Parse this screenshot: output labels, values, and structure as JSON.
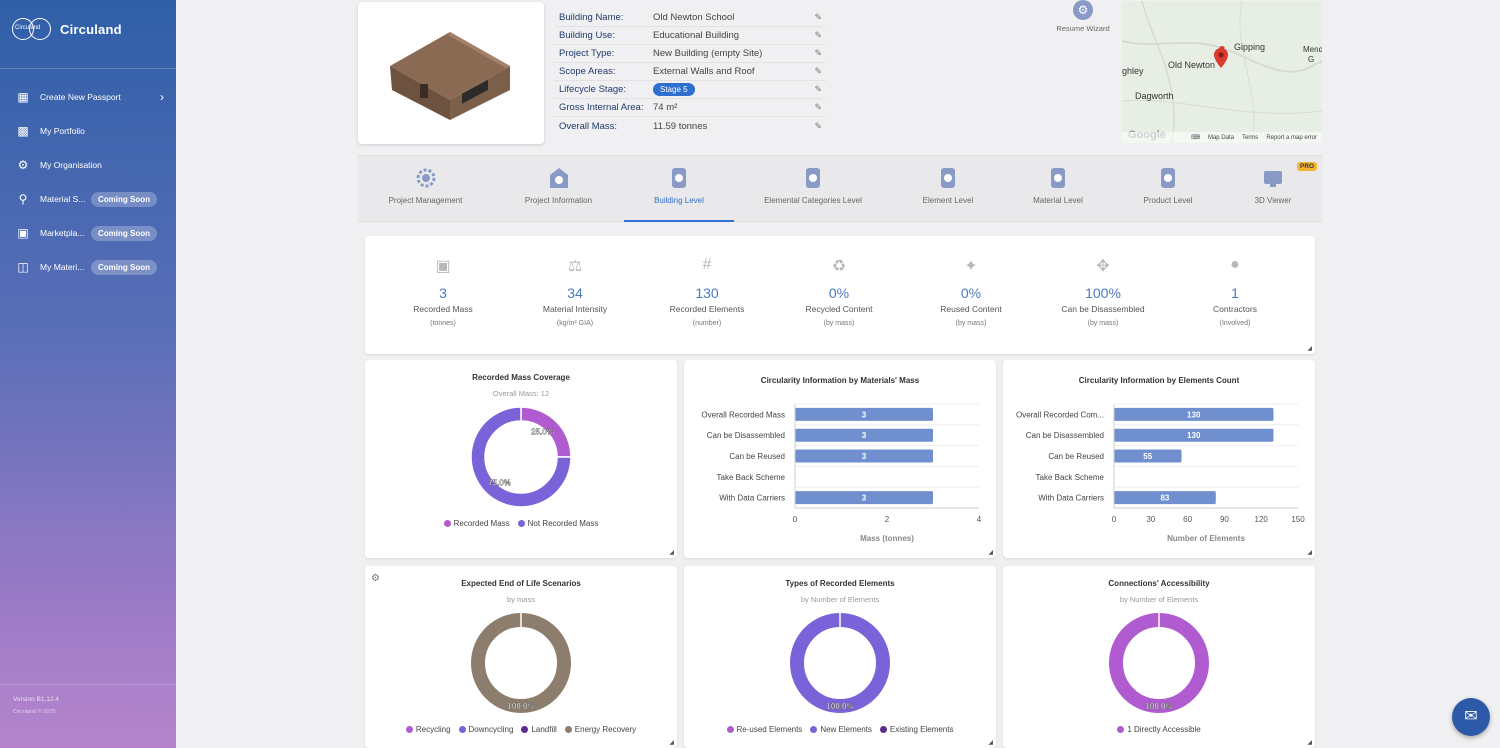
{
  "sidebar": {
    "brand": "Circuland",
    "logo_text": "Circuland",
    "items": [
      {
        "label": "Create New Passport",
        "icon": "passport-add-icon",
        "badge": ""
      },
      {
        "label": "My Portfolio",
        "icon": "portfolio-icon",
        "badge": ""
      },
      {
        "label": "My Organisation",
        "icon": "organisation-icon",
        "badge": ""
      },
      {
        "label": "Material S...",
        "icon": "material-search-icon",
        "badge": "Coming Soon"
      },
      {
        "label": "Marketpla...",
        "icon": "marketplace-icon",
        "badge": "Coming Soon"
      },
      {
        "label": "My Materi...",
        "icon": "folder-icon",
        "badge": "Coming Soon"
      }
    ],
    "version": "Version B1.12.4",
    "copyright": "Circuland © 2025"
  },
  "project": {
    "rows": [
      {
        "label": "Building Name:",
        "value": "Old Newton School"
      },
      {
        "label": "Building Use:",
        "value": "Educational Building"
      },
      {
        "label": "Project Type:",
        "value": "New Building (empty Site)"
      },
      {
        "label": "Scope Areas:",
        "value": "External Walls and Roof"
      },
      {
        "label": "Lifecycle Stage:",
        "value": "Stage 5"
      },
      {
        "label": "Gross Internal Area:",
        "value": "74 m²"
      },
      {
        "label": "Overall Mass:",
        "value": "11.59 tonnes"
      }
    ]
  },
  "resume_wizard": "Resume Wizard",
  "map": {
    "labels": [
      "Gipping",
      "Old Newton",
      "Dagworth",
      "ghley",
      "Mend",
      "G"
    ],
    "footer": [
      "Map Data",
      "Terms",
      "Report a map error"
    ],
    "logo": "Google"
  },
  "tabs": [
    {
      "label": "Project Management"
    },
    {
      "label": "Project Information"
    },
    {
      "label": "Building Level"
    },
    {
      "label": "Elemental Categories Level"
    },
    {
      "label": "Element Level"
    },
    {
      "label": "Material Level"
    },
    {
      "label": "Product Level"
    },
    {
      "label": "3D Viewer",
      "badge": "PRO"
    }
  ],
  "kpis": [
    {
      "value": "3",
      "label": "Recorded Mass",
      "unit": "(tonnes)",
      "icon": "weight-icon"
    },
    {
      "value": "34",
      "label": "Material Intensity",
      "unit": "(kg/m² GIA)",
      "icon": "scale-icon"
    },
    {
      "value": "130",
      "label": "Recorded Elements",
      "unit": "(number)",
      "icon": "hash-icon"
    },
    {
      "value": "0%",
      "label": "Recycled Content",
      "unit": "(by mass)",
      "icon": "recycle-icon"
    },
    {
      "value": "0%",
      "label": "Reused Content",
      "unit": "(by mass)",
      "icon": "puzzle-icon"
    },
    {
      "value": "100%",
      "label": "Can be Disassembled",
      "unit": "(by mass)",
      "icon": "disassemble-icon"
    },
    {
      "value": "1",
      "label": "Contractors",
      "unit": "(Involved)",
      "icon": "person-icon"
    }
  ],
  "chart_data": [
    {
      "type": "pie",
      "title": "Recorded Mass Coverage",
      "subtitle": "Overall Mass: 12",
      "categories": [
        "Recorded Mass",
        "Not Recorded Mass"
      ],
      "values": [
        25.0,
        75.0
      ],
      "labels": [
        "25.0%",
        "75.0%"
      ],
      "colors": [
        "#b05cd0",
        "#7a62d8"
      ],
      "legend": "bottom"
    },
    {
      "type": "bar",
      "orientation": "horizontal",
      "title": "Circularity Information by Materials' Mass",
      "categories": [
        "Overall Recorded Mass",
        "Can be Disassembled",
        "Can be Reused",
        "Take Back Scheme",
        "With Data Carriers"
      ],
      "values": [
        3,
        3,
        3,
        0,
        3
      ],
      "xlabel": "Mass (tonnes)",
      "xlim": [
        0,
        4
      ],
      "xticks": [
        0,
        2,
        4
      ],
      "color": "#6f8fcf"
    },
    {
      "type": "bar",
      "orientation": "horizontal",
      "title": "Circularity Information by Elements Count",
      "categories": [
        "Overall Recorded Com...",
        "Can be Disassembled",
        "Can be Reused",
        "Take Back Scheme",
        "With Data Carriers"
      ],
      "values": [
        130,
        130,
        55,
        0,
        83
      ],
      "xlabel": "Number of Elements",
      "xlim": [
        0,
        150
      ],
      "xticks": [
        0,
        30,
        60,
        90,
        120,
        150
      ],
      "color": "#6f8fcf"
    },
    {
      "type": "pie",
      "title": "Expected End of Life Scenarios",
      "subtitle": "by mass",
      "categories": [
        "Recycling",
        "Downcycling",
        "Landfill",
        "Energy Recovery"
      ],
      "values": [
        0,
        0,
        0,
        100.0
      ],
      "labels": [
        "",
        "",
        "",
        "100.0%"
      ],
      "colors": [
        "#b05cd0",
        "#7a62d8",
        "#5a2a90",
        "#8d7d6d"
      ],
      "legend": "bottom"
    },
    {
      "type": "pie",
      "title": "Types of Recorded Elements",
      "subtitle": "by Number of Elements",
      "categories": [
        "Re-used Elements",
        "New Elements",
        "Existing Elements"
      ],
      "values": [
        0,
        100.0,
        0
      ],
      "labels": [
        "",
        "100.0%",
        ""
      ],
      "colors": [
        "#b05cd0",
        "#7a62d8",
        "#5a2a90"
      ],
      "legend": "bottom"
    },
    {
      "type": "pie",
      "title": "Connections' Accessibility",
      "subtitle": "by Number of Elements",
      "categories": [
        "1 Directly Accessible"
      ],
      "values": [
        100.0
      ],
      "labels": [
        "100.0%"
      ],
      "colors": [
        "#b05cd0"
      ],
      "legend": "bottom"
    }
  ]
}
